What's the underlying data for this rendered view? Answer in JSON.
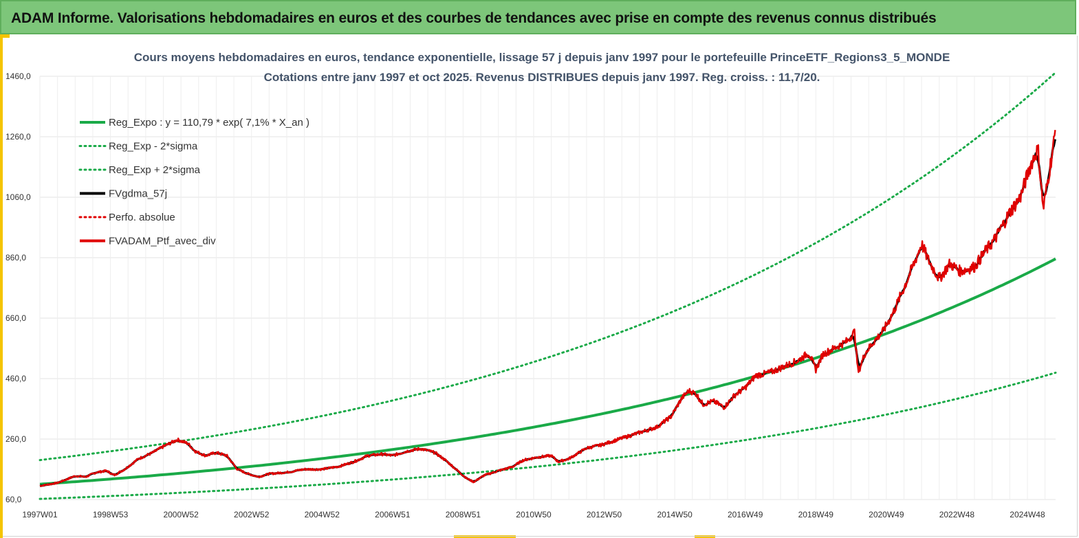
{
  "header": {
    "title": "ADAM Informe. Valorisations hebdomadaires en euros et des courbes de tendances avec prise en compte des revenus connus distribués"
  },
  "chart_data": {
    "type": "line",
    "title": "Cours moyens hebdomadaires  en euros, tendance exponentielle, lissage 57 j depuis janv 1997 pour le portefeuille PrinceETF_Regions3_5_MONDE",
    "subtitle": "Cotations  entre janv 1997 et oct 2025. Revenus DISTRIBUES depuis janv 1997. Reg. croiss. : 11,7/20.",
    "ylim": [
      60,
      1460
    ],
    "yticks": [
      "60,0",
      "260,0",
      "460,0",
      "660,0",
      "860,0",
      "1060,0",
      "1260,0",
      "1460,0"
    ],
    "x_range_years": [
      1997.0,
      2025.8
    ],
    "xticks": [
      {
        "label": "1997W01",
        "year": 1997.0
      },
      {
        "label": "1998W53",
        "year": 1999.0
      },
      {
        "label": "2000W52",
        "year": 2001.0
      },
      {
        "label": "2002W52",
        "year": 2003.0
      },
      {
        "label": "2004W52",
        "year": 2005.0
      },
      {
        "label": "2006W51",
        "year": 2007.0
      },
      {
        "label": "2008W51",
        "year": 2009.0
      },
      {
        "label": "2010W50",
        "year": 2011.0
      },
      {
        "label": "2012W50",
        "year": 2013.0
      },
      {
        "label": "2014W50",
        "year": 2015.0
      },
      {
        "label": "2016W49",
        "year": 2017.0
      },
      {
        "label": "2018W49",
        "year": 2019.0
      },
      {
        "label": "2020W49",
        "year": 2021.0
      },
      {
        "label": "2022W48",
        "year": 2023.0
      },
      {
        "label": "2024W48",
        "year": 2025.0
      }
    ],
    "regression": {
      "a": 110.79,
      "rate": 0.071,
      "sigma_band_factor_low": 0.56,
      "sigma_band_factor_high": 1.72
    },
    "series": [
      {
        "name": "Reg_Expo : y = 110,79 * exp( 7,1% *  X_an )",
        "style": "solid",
        "color": "#1aaa48",
        "kind": "regression"
      },
      {
        "name": "Reg_Exp - 2*sigma",
        "style": "dotted",
        "color": "#1aaa48",
        "kind": "lower"
      },
      {
        "name": "Reg_Exp + 2*sigma",
        "style": "dotted",
        "color": "#1aaa48",
        "kind": "upper"
      },
      {
        "name": "FVgdma_57j",
        "style": "solid",
        "color": "#000000",
        "kind": "smoothed"
      },
      {
        "name": "Perfo. absolue",
        "style": "dotted",
        "color": "#e00000",
        "kind": "none"
      },
      {
        "name": "FVADAM_Ptf_avec_div",
        "style": "solid",
        "color": "#e00000",
        "kind": "price",
        "points": [
          [
            1997.0,
            105
          ],
          [
            1997.5,
            115
          ],
          [
            1998.0,
            138
          ],
          [
            1998.3,
            135
          ],
          [
            1998.6,
            150
          ],
          [
            1998.9,
            155
          ],
          [
            1999.1,
            140
          ],
          [
            1999.4,
            160
          ],
          [
            1999.8,
            195
          ],
          [
            2000.2,
            215
          ],
          [
            2000.5,
            235
          ],
          [
            2000.9,
            258
          ],
          [
            2001.2,
            245
          ],
          [
            2001.4,
            220
          ],
          [
            2001.7,
            205
          ],
          [
            2002.0,
            215
          ],
          [
            2002.3,
            205
          ],
          [
            2002.6,
            160
          ],
          [
            2002.9,
            145
          ],
          [
            2003.2,
            135
          ],
          [
            2003.5,
            145
          ],
          [
            2004.0,
            150
          ],
          [
            2004.5,
            160
          ],
          [
            2005.0,
            160
          ],
          [
            2005.5,
            170
          ],
          [
            2005.9,
            185
          ],
          [
            2006.3,
            205
          ],
          [
            2006.7,
            210
          ],
          [
            2007.0,
            205
          ],
          [
            2007.4,
            220
          ],
          [
            2007.8,
            228
          ],
          [
            2008.2,
            215
          ],
          [
            2008.5,
            190
          ],
          [
            2008.8,
            160
          ],
          [
            2009.1,
            130
          ],
          [
            2009.3,
            118
          ],
          [
            2009.6,
            140
          ],
          [
            2010.0,
            155
          ],
          [
            2010.4,
            168
          ],
          [
            2010.7,
            190
          ],
          [
            2011.1,
            200
          ],
          [
            2011.5,
            205
          ],
          [
            2011.7,
            185
          ],
          [
            2012.0,
            195
          ],
          [
            2012.5,
            230
          ],
          [
            2012.9,
            240
          ],
          [
            2013.3,
            255
          ],
          [
            2013.7,
            270
          ],
          [
            2014.1,
            285
          ],
          [
            2014.5,
            300
          ],
          [
            2014.9,
            335
          ],
          [
            2015.2,
            395
          ],
          [
            2015.4,
            420
          ],
          [
            2015.6,
            410
          ],
          [
            2015.8,
            375
          ],
          [
            2016.1,
            385
          ],
          [
            2016.4,
            365
          ],
          [
            2016.7,
            405
          ],
          [
            2017.0,
            430
          ],
          [
            2017.3,
            470
          ],
          [
            2017.7,
            480
          ],
          [
            2018.1,
            500
          ],
          [
            2018.5,
            520
          ],
          [
            2018.8,
            545
          ],
          [
            2019.0,
            490
          ],
          [
            2019.2,
            540
          ],
          [
            2019.6,
            565
          ],
          [
            2019.9,
            585
          ],
          [
            2020.1,
            615
          ],
          [
            2020.2,
            480
          ],
          [
            2020.4,
            545
          ],
          [
            2020.7,
            590
          ],
          [
            2020.9,
            615
          ],
          [
            2021.2,
            680
          ],
          [
            2021.5,
            760
          ],
          [
            2021.8,
            845
          ],
          [
            2022.0,
            905
          ],
          [
            2022.2,
            850
          ],
          [
            2022.5,
            790
          ],
          [
            2022.8,
            840
          ],
          [
            2023.1,
            815
          ],
          [
            2023.5,
            830
          ],
          [
            2023.8,
            880
          ],
          [
            2024.1,
            925
          ],
          [
            2024.5,
            1010
          ],
          [
            2024.8,
            1060
          ],
          [
            2025.1,
            1170
          ],
          [
            2025.3,
            1220
          ],
          [
            2025.45,
            1020
          ],
          [
            2025.6,
            1130
          ],
          [
            2025.75,
            1240
          ],
          [
            2025.8,
            1290
          ]
        ]
      }
    ]
  }
}
